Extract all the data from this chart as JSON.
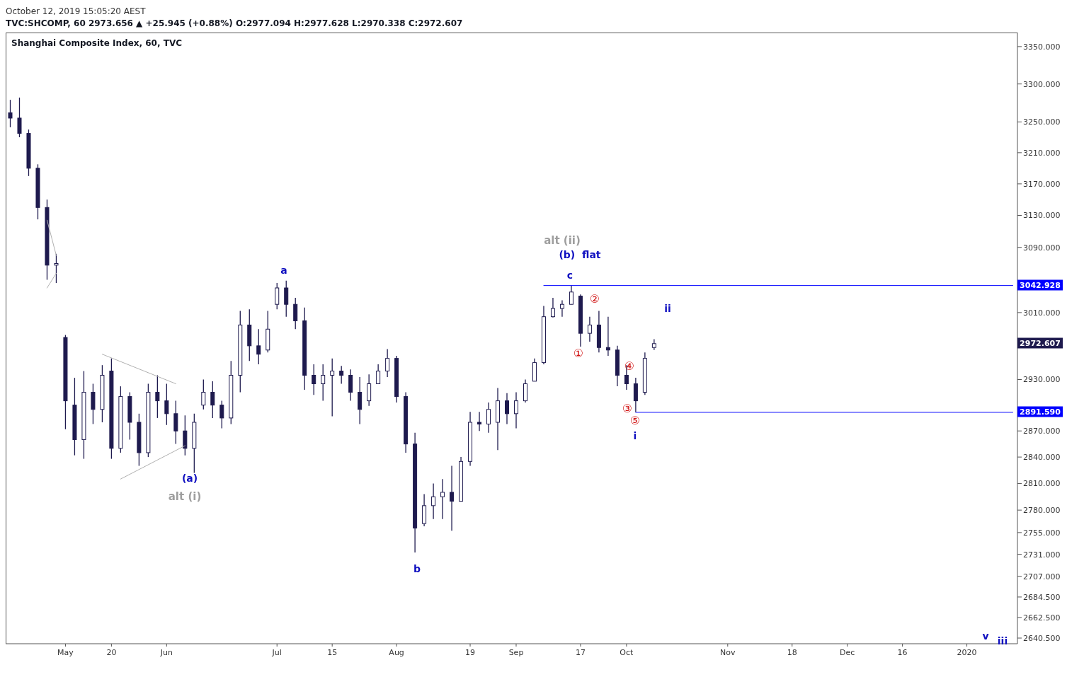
{
  "chart_data": {
    "type": "candlestick",
    "title": "Shanghai Composite Index, 60, TVC",
    "subtitle": "TVC:SHCOMP, 60  2973.656 ▲ +25.945 (+0.88%) O:2977.094 H:2977.628 L:2970.338 C:2972.607",
    "color": "#1e1a4e",
    "log": true,
    "categories": [
      null,
      null,
      null,
      null,
      null,
      null,
      "May",
      null,
      null,
      null,
      null,
      "20",
      null,
      null,
      null,
      null,
      null,
      "Jun",
      null,
      null,
      null,
      null,
      null,
      null,
      null,
      null,
      null,
      null,
      null,
      "Jul",
      null,
      null,
      null,
      null,
      null,
      "15",
      null,
      null,
      null,
      null,
      null,
      null,
      "Aug",
      null,
      null,
      null,
      null,
      null,
      null,
      null,
      "19",
      null,
      null,
      null,
      null,
      "Sep",
      null,
      null,
      null,
      null,
      null,
      null,
      "17",
      null,
      null,
      null,
      null,
      "Oct",
      null,
      null,
      null,
      null,
      null,
      null,
      null,
      null,
      null,
      null,
      "Nov",
      null,
      null,
      null,
      null,
      null,
      null,
      "18",
      null,
      null,
      null,
      null,
      null,
      "Dec",
      null,
      null,
      null,
      null,
      null,
      "16",
      null,
      null,
      null,
      null,
      null,
      null,
      "2020",
      null,
      null,
      null,
      null,
      null
    ],
    "ohlc": [
      [
        3262,
        3279,
        3243,
        3255
      ],
      [
        3255,
        3282,
        3230,
        3235
      ],
      [
        3235,
        3240,
        3180,
        3190
      ],
      [
        3190,
        3195,
        3125,
        3140
      ],
      [
        3140,
        3150,
        3050,
        3068
      ],
      [
        3068,
        3082,
        3046,
        3070
      ],
      [
        2980,
        2983,
        2872,
        2905
      ],
      [
        2900,
        2932,
        2842,
        2860
      ],
      [
        2860,
        2940,
        2838,
        2915
      ],
      [
        2915,
        2925,
        2878,
        2895
      ],
      [
        2895,
        2947,
        2880,
        2935
      ],
      [
        2940,
        2955,
        2838,
        2850
      ],
      [
        2850,
        2922,
        2845,
        2910
      ],
      [
        2910,
        2915,
        2860,
        2880
      ],
      [
        2880,
        2890,
        2830,
        2845
      ],
      [
        2845,
        2925,
        2840,
        2915
      ],
      [
        2915,
        2935,
        2885,
        2905
      ],
      [
        2905,
        2925,
        2877,
        2890
      ],
      [
        2890,
        2905,
        2855,
        2870
      ],
      [
        2870,
        2888,
        2842,
        2850
      ],
      [
        2850,
        2890,
        2822,
        2880
      ],
      [
        2900,
        2930,
        2895,
        2915
      ],
      [
        2915,
        2928,
        2885,
        2900
      ],
      [
        2900,
        2905,
        2873,
        2885
      ],
      [
        2885,
        2952,
        2878,
        2935
      ],
      [
        2935,
        3012,
        2915,
        2995
      ],
      [
        2995,
        3014,
        2952,
        2970
      ],
      [
        2970,
        2990,
        2948,
        2960
      ],
      [
        2965,
        3012,
        2962,
        2990
      ],
      [
        3020,
        3046,
        3014,
        3040
      ],
      [
        3040,
        3049,
        3005,
        3020
      ],
      [
        3020,
        3028,
        2990,
        3000
      ],
      [
        3000,
        3016,
        2918,
        2935
      ],
      [
        2935,
        2948,
        2912,
        2925
      ],
      [
        2925,
        2948,
        2905,
        2935
      ],
      [
        2935,
        2955,
        2887,
        2940
      ],
      [
        2940,
        2946,
        2925,
        2935
      ],
      [
        2935,
        2942,
        2905,
        2915
      ],
      [
        2915,
        2933,
        2878,
        2895
      ],
      [
        2905,
        2936,
        2899,
        2925
      ],
      [
        2925,
        2948,
        2925,
        2940
      ],
      [
        2940,
        2966,
        2933,
        2955
      ],
      [
        2955,
        2958,
        2903,
        2910
      ],
      [
        2910,
        2915,
        2845,
        2855
      ],
      [
        2855,
        2868,
        2733,
        2760
      ],
      [
        2765,
        2798,
        2762,
        2785
      ],
      [
        2785,
        2810,
        2770,
        2795
      ],
      [
        2795,
        2815,
        2770,
        2800
      ],
      [
        2800,
        2830,
        2757,
        2790
      ],
      [
        2790,
        2840,
        2790,
        2835
      ],
      [
        2835,
        2892,
        2830,
        2880
      ],
      [
        2880,
        2892,
        2870,
        2878
      ],
      [
        2878,
        2903,
        2868,
        2895
      ],
      [
        2880,
        2920,
        2848,
        2905
      ],
      [
        2905,
        2914,
        2878,
        2890
      ],
      [
        2890,
        2915,
        2873,
        2905
      ],
      [
        2905,
        2930,
        2903,
        2925
      ],
      [
        2928,
        2955,
        2928,
        2950
      ],
      [
        2950,
        3018,
        2948,
        3005
      ],
      [
        3005,
        3028,
        3004,
        3015
      ],
      [
        3015,
        3025,
        3005,
        3020
      ],
      [
        3020,
        3042.928,
        3020,
        3035
      ],
      [
        3030,
        3032,
        2969,
        2985
      ],
      [
        2985,
        3005,
        2975,
        2995
      ],
      [
        2995,
        3012,
        2962,
        2968
      ],
      [
        2968,
        3005,
        2958,
        2965
      ],
      [
        2965,
        2970,
        2922,
        2935
      ],
      [
        2935,
        2947,
        2918,
        2925
      ],
      [
        2925,
        2932,
        2891.59,
        2905
      ],
      [
        2915,
        2962,
        2912,
        2955
      ],
      [
        2968,
        2978,
        2965,
        2972.607
      ],
      null,
      null,
      null,
      null,
      null,
      null,
      null,
      null,
      null,
      null,
      null,
      null,
      null,
      null,
      null,
      null,
      null,
      null,
      null,
      null,
      null,
      null,
      null,
      null,
      null,
      null,
      null,
      null,
      null,
      null,
      null,
      null,
      null,
      null,
      null,
      null,
      null,
      null,
      null
    ],
    "series": [
      {
        "type": "line",
        "color": "#b0b0b0",
        "values": [
          null,
          null,
          null,
          null,
          null,
          null,
          null,
          null,
          null,
          null,
          2960,
          null,
          null,
          null,
          null,
          null,
          null,
          null,
          2925,
          null,
          null,
          null,
          null,
          null,
          null,
          null,
          null,
          null,
          null,
          null,
          null,
          null,
          null,
          null,
          null,
          null,
          null,
          null,
          null,
          null,
          null,
          null,
          null,
          null,
          null,
          null,
          null,
          null,
          null,
          null,
          null,
          null,
          null,
          null,
          null,
          null,
          null,
          null,
          null,
          null,
          null,
          null,
          null,
          null,
          null,
          null,
          null,
          null,
          null,
          null,
          null,
          null,
          null,
          null,
          null,
          null,
          null,
          null,
          null,
          null,
          null,
          null,
          null,
          null,
          null,
          null,
          null,
          null,
          null,
          null,
          null,
          null,
          null,
          null,
          null,
          null,
          null,
          null,
          null,
          null,
          null,
          null,
          null,
          null,
          null,
          null,
          null,
          null,
          null,
          null
        ]
      },
      {
        "type": "line",
        "color": "#b0b0b0",
        "values": [
          null,
          null,
          null,
          null,
          null,
          null,
          null,
          null,
          null,
          null,
          null,
          null,
          2815,
          null,
          null,
          null,
          null,
          null,
          null,
          2853,
          null,
          null,
          null,
          null,
          null,
          null,
          null,
          null,
          null,
          null,
          null,
          null,
          null,
          null,
          null,
          null,
          null,
          null,
          null,
          null,
          null,
          null,
          null,
          null,
          null,
          null,
          null,
          null,
          null,
          null,
          null,
          null,
          null,
          null,
          null,
          null,
          null,
          null,
          null,
          null,
          null,
          null,
          null,
          null,
          null,
          null,
          null,
          null,
          null,
          null,
          null,
          null,
          null,
          null,
          null,
          null,
          null,
          null,
          null,
          null,
          null,
          null,
          null,
          null,
          null,
          null,
          null,
          null,
          null,
          null,
          null,
          null,
          null,
          null,
          null,
          null,
          null,
          null,
          null,
          null,
          null,
          null,
          null,
          null,
          null,
          null,
          null,
          null,
          null,
          null
        ]
      },
      {
        "type": "line",
        "color": "#b0b0b0",
        "values": [
          null,
          null,
          null,
          null,
          3124,
          3080,
          null,
          null,
          null,
          null,
          null,
          null,
          null,
          null,
          null,
          null,
          null,
          null,
          null,
          null,
          null,
          null,
          null,
          null,
          null,
          null,
          null,
          null,
          null,
          null,
          null,
          null,
          null,
          null,
          null,
          null,
          null,
          null,
          null,
          null,
          null,
          null,
          null,
          null,
          null,
          null,
          null,
          null,
          null,
          null,
          null,
          null,
          null,
          null,
          null,
          null,
          null,
          null,
          null,
          null,
          null,
          null,
          null,
          null,
          null,
          null,
          null,
          null,
          null,
          null,
          null,
          null,
          null,
          null,
          null,
          null,
          null,
          null,
          null,
          null,
          null,
          null,
          null,
          null,
          null,
          null,
          null,
          null,
          null,
          null,
          null,
          null,
          null,
          null,
          null,
          null,
          null,
          null,
          null,
          null,
          null,
          null,
          null,
          null,
          null,
          null,
          null,
          null,
          null,
          null
        ]
      },
      {
        "type": "line",
        "color": "#b0b0b0",
        "values": [
          null,
          null,
          null,
          null,
          3040,
          3058,
          null,
          null,
          null,
          null,
          null,
          null,
          null,
          null,
          null,
          null,
          null,
          null,
          null,
          null,
          null,
          null,
          null,
          null,
          null,
          null,
          null,
          null,
          null,
          null,
          null,
          null,
          null,
          null,
          null,
          null,
          null,
          null,
          null,
          null,
          null,
          null,
          null,
          null,
          null,
          null,
          null,
          null,
          null,
          null,
          null,
          null,
          null,
          null,
          null,
          null,
          null,
          null,
          null,
          null,
          null,
          null,
          null,
          null,
          null,
          null,
          null,
          null,
          null,
          null,
          null,
          null,
          null,
          null,
          null,
          null,
          null,
          null,
          null,
          null,
          null,
          null,
          null,
          null,
          null,
          null,
          null,
          null,
          null,
          null,
          null,
          null,
          null,
          null,
          null,
          null,
          null,
          null,
          null,
          null,
          null,
          null,
          null,
          null,
          null,
          null,
          null,
          null,
          null,
          null
        ]
      },
      {
        "type": "line",
        "color": "#0000ff",
        "values": [
          null,
          null,
          null,
          null,
          null,
          null,
          null,
          null,
          null,
          null,
          null,
          null,
          null,
          null,
          null,
          null,
          null,
          null,
          null,
          null,
          null,
          null,
          null,
          null,
          null,
          null,
          null,
          null,
          null,
          null,
          null,
          null,
          null,
          null,
          null,
          null,
          null,
          null,
          null,
          null,
          null,
          null,
          null,
          null,
          null,
          null,
          null,
          null,
          null,
          null,
          null,
          null,
          null,
          null,
          null,
          null,
          null,
          null,
          3042.928,
          null,
          null,
          null,
          null,
          null,
          null,
          null,
          null,
          null,
          null,
          null,
          null,
          null,
          null,
          null,
          null,
          null,
          null,
          null,
          null,
          null,
          null,
          null,
          null,
          null,
          null,
          null,
          null,
          null,
          null,
          null,
          null,
          null,
          null,
          null,
          null,
          null,
          null,
          null,
          null,
          null,
          null,
          null,
          null,
          null,
          null,
          null,
          null,
          null,
          null,
          3042.928
        ]
      },
      {
        "type": "line",
        "color": "#0000ff",
        "values": [
          null,
          null,
          null,
          null,
          null,
          null,
          null,
          null,
          null,
          null,
          null,
          null,
          null,
          null,
          null,
          null,
          null,
          null,
          null,
          null,
          null,
          null,
          null,
          null,
          null,
          null,
          null,
          null,
          null,
          null,
          null,
          null,
          null,
          null,
          null,
          null,
          null,
          null,
          null,
          null,
          null,
          null,
          null,
          null,
          null,
          null,
          null,
          null,
          null,
          null,
          null,
          null,
          null,
          null,
          null,
          null,
          null,
          null,
          null,
          null,
          null,
          null,
          null,
          null,
          null,
          null,
          null,
          null,
          2891.59,
          null,
          null,
          null,
          null,
          null,
          null,
          null,
          null,
          null,
          null,
          null,
          null,
          null,
          null,
          null,
          null,
          null,
          null,
          null,
          null,
          null,
          null,
          null,
          null,
          null,
          null,
          null,
          null,
          null,
          null,
          null,
          null,
          null,
          null,
          null,
          null,
          null,
          null,
          null,
          null,
          2891.59
        ]
      }
    ],
    "ylim": [
      2634.5,
      3369
    ],
    "yticks": [
      {
        "value": 3350,
        "label": "3350.000"
      },
      {
        "value": 3300,
        "label": "3300.000"
      },
      {
        "value": 3250,
        "label": "3250.000"
      },
      {
        "value": 3210,
        "label": "3210.000"
      },
      {
        "value": 3170,
        "label": "3170.000"
      },
      {
        "value": 3130,
        "label": "3130.000"
      },
      {
        "value": 3090,
        "label": "3090.000"
      },
      {
        "value": 3010,
        "label": "3010.000"
      },
      {
        "value": 2930,
        "label": "2930.000"
      },
      {
        "value": 2870,
        "label": "2870.000"
      },
      {
        "value": 2840,
        "label": "2840.000"
      },
      {
        "value": 2810,
        "label": "2810.000"
      },
      {
        "value": 2780,
        "label": "2780.000"
      },
      {
        "value": 2755,
        "label": "2755.000"
      },
      {
        "value": 2731,
        "label": "2731.000"
      },
      {
        "value": 2707,
        "label": "2707.000"
      },
      {
        "value": 2684.5,
        "label": "2684.500"
      },
      {
        "value": 2662.5,
        "label": "2662.500"
      },
      {
        "value": 2640.5,
        "label": "2640.500"
      }
    ],
    "annotations": [
      "October 12, 2019 15:05:20 AEST",
      "a",
      "(a)",
      "alt (i)",
      "b",
      "alt (ii)",
      "(b)  flat",
      "c",
      "①",
      "②",
      "③",
      "④",
      "⑤",
      "i",
      "ii",
      "v",
      "iii",
      "3042.928",
      "2972.607",
      "2891.590"
    ]
  }
}
